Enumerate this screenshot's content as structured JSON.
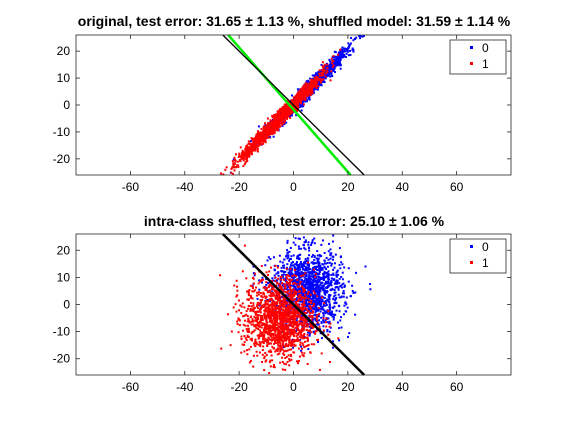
{
  "chart_data": [
    {
      "type": "scatter",
      "title": "original, test error: 31.65 ± 1.13 %, shuffled model: 31.59 ± 1.14 %",
      "xlabel": "",
      "ylabel": "",
      "xlim": [
        -80,
        80
      ],
      "ylim": [
        -26,
        26
      ],
      "xticks": [
        -60,
        -40,
        -20,
        0,
        20,
        40,
        60
      ],
      "yticks": [
        20,
        10,
        0,
        -10,
        -20
      ],
      "legend_position": "top-right",
      "series": [
        {
          "name": "0",
          "color": "#0000ff",
          "cloud": "correlated",
          "center": [
            5,
            5
          ],
          "count": 1500
        },
        {
          "name": "1",
          "color": "#ff0000",
          "cloud": "correlated",
          "center": [
            -5,
            -5
          ],
          "count": 1500
        }
      ],
      "lines": [
        {
          "color": "#00ee00",
          "x": [
            -24,
            21
          ],
          "y": [
            26,
            -26
          ]
        },
        {
          "color": "#000000",
          "x": [
            -26,
            26
          ],
          "y": [
            26,
            -26
          ]
        }
      ]
    },
    {
      "type": "scatter",
      "title": "intra-class shuffled, test error: 25.10 ± 1.06 %",
      "xlabel": "",
      "ylabel": "",
      "xlim": [
        -80,
        80
      ],
      "ylim": [
        -26,
        26
      ],
      "xticks": [
        -60,
        -40,
        -20,
        0,
        20,
        40,
        60
      ],
      "yticks": [
        20,
        10,
        0,
        -10,
        -20
      ],
      "legend_position": "top-right",
      "series": [
        {
          "name": "0",
          "color": "#0000ff",
          "cloud": "isotropic",
          "center": [
            5,
            5
          ],
          "count": 1500
        },
        {
          "name": "1",
          "color": "#ff0000",
          "cloud": "isotropic",
          "center": [
            -5,
            -5
          ],
          "count": 1500
        }
      ],
      "lines": [
        {
          "color": "#000000",
          "x": [
            -26,
            26
          ],
          "y": [
            26,
            -26
          ]
        }
      ]
    }
  ]
}
